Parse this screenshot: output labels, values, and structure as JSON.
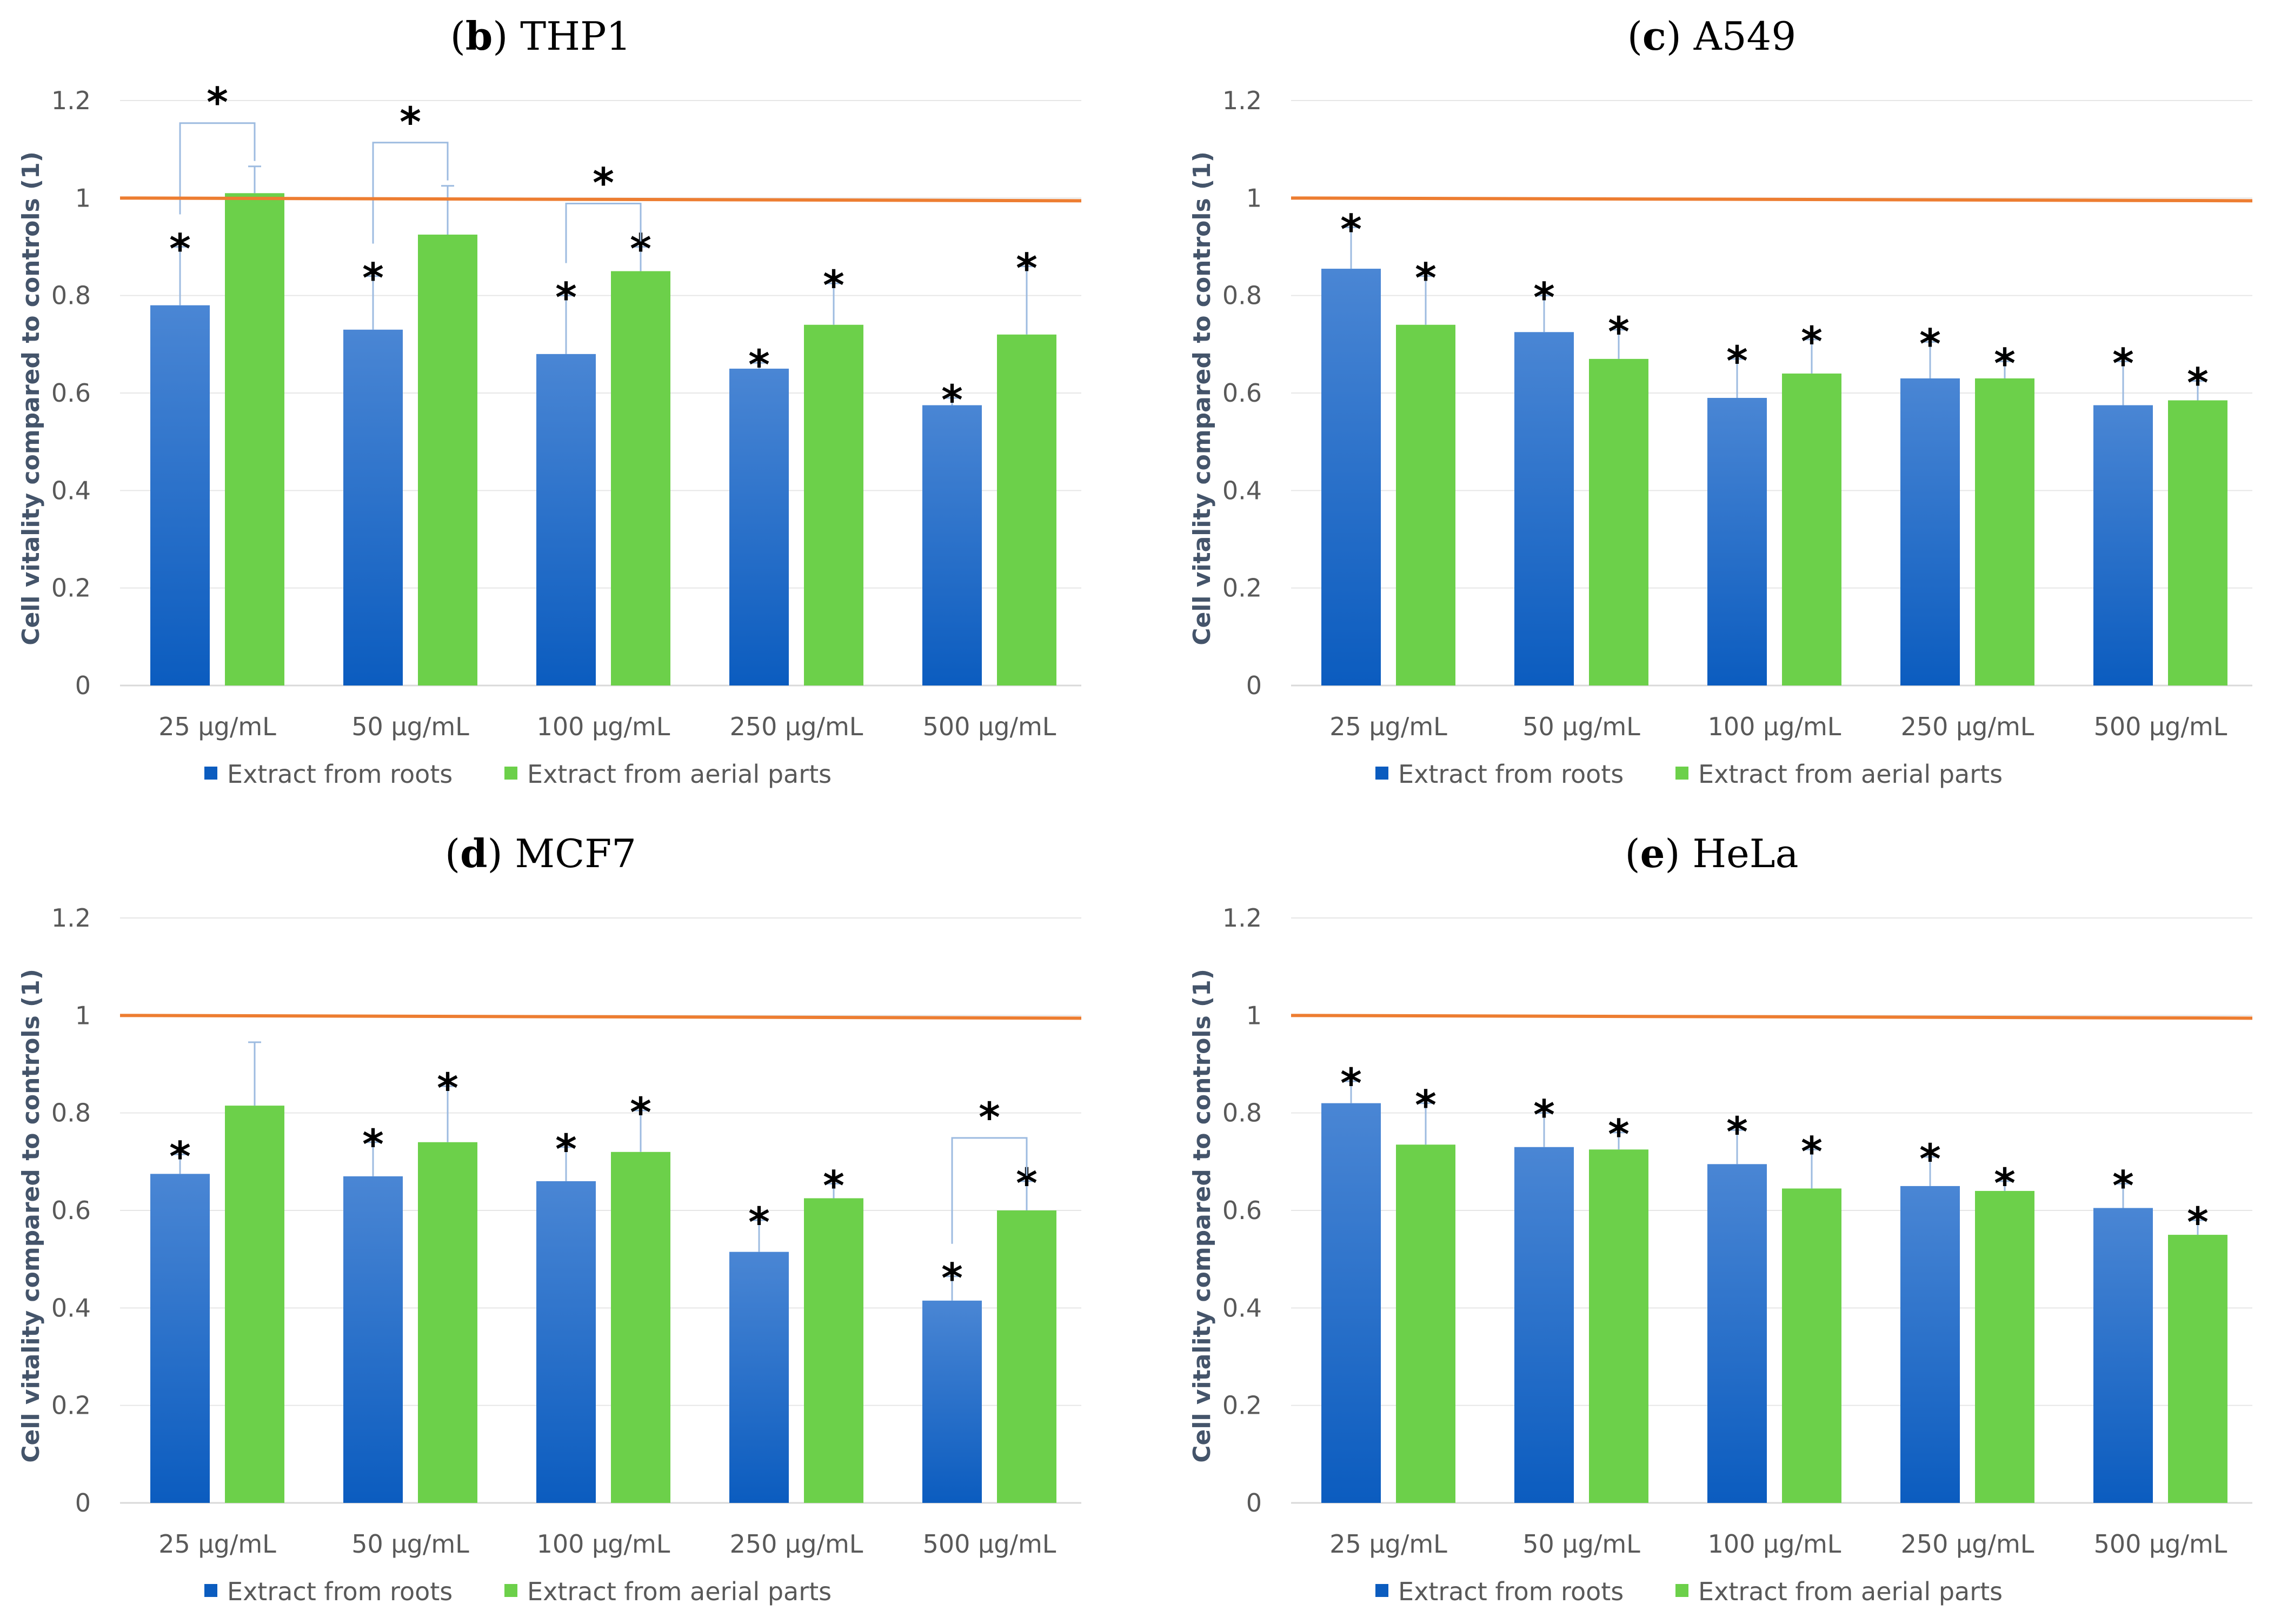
{
  "chart_data": [
    {
      "type": "bar",
      "panel_letter": "b",
      "panel_name": "THP1",
      "ylabel": "Cell vitality compared to controls (1)",
      "ylim": [
        0,
        1.2
      ],
      "yticks": [
        "0",
        "0.2",
        "0.4",
        "0.6",
        "0.8",
        "1",
        "1.2"
      ],
      "reference_line": 1,
      "categories": [
        "25 µg/mL",
        "50 µg/mL",
        "100 µg/mL",
        "250 µg/mL",
        "500 µg/mL"
      ],
      "series": [
        {
          "name": "Extract from roots",
          "values": [
            0.78,
            0.73,
            0.68,
            0.65,
            0.575
          ],
          "errors": [
            0.12,
            0.11,
            0.12,
            0.012,
            0.015
          ],
          "stars": [
            true,
            true,
            true,
            true,
            true
          ]
        },
        {
          "name": "Extract from aerial parts",
          "values": [
            1.01,
            0.925,
            0.85,
            0.74,
            0.72
          ],
          "errors": [
            0.055,
            0.1,
            0.05,
            0.085,
            0.14
          ],
          "stars": [
            false,
            false,
            true,
            true,
            true
          ]
        }
      ],
      "brackets": [
        {
          "category": 0,
          "label": "*"
        },
        {
          "category": 1,
          "label": "*"
        },
        {
          "category": 2,
          "label": "*"
        }
      ],
      "star_label": "*"
    },
    {
      "type": "bar",
      "panel_letter": "c",
      "panel_name": "A549",
      "ylabel": "Cell vitality compared to controls (1)",
      "ylim": [
        0,
        1.2
      ],
      "yticks": [
        "0",
        "0.2",
        "0.4",
        "0.6",
        "0.8",
        "1",
        "1.2"
      ],
      "reference_line": 1,
      "categories": [
        "25 µg/mL",
        "50 µg/mL",
        "100 µg/mL",
        "250 µg/mL",
        "500 µg/mL"
      ],
      "series": [
        {
          "name": "Extract from roots",
          "values": [
            0.855,
            0.725,
            0.59,
            0.63,
            0.575
          ],
          "errors": [
            0.085,
            0.075,
            0.08,
            0.075,
            0.09
          ],
          "stars": [
            true,
            true,
            true,
            true,
            true
          ]
        },
        {
          "name": "Extract from aerial parts",
          "values": [
            0.74,
            0.67,
            0.64,
            0.63,
            0.585
          ],
          "errors": [
            0.1,
            0.06,
            0.07,
            0.035,
            0.04
          ],
          "stars": [
            true,
            true,
            true,
            true,
            true
          ]
        }
      ],
      "brackets": [],
      "star_label": "*"
    },
    {
      "type": "bar",
      "panel_letter": "d",
      "panel_name": "MCF7",
      "ylabel": "Cell vitality compared to controls (1)",
      "ylim": [
        0,
        1.2
      ],
      "yticks": [
        "0",
        "0.2",
        "0.4",
        "0.6",
        "0.8",
        "1",
        "1.2"
      ],
      "reference_line": 1,
      "categories": [
        "25 µg/mL",
        "50 µg/mL",
        "100 µg/mL",
        "250 µg/mL",
        "500 µg/mL"
      ],
      "series": [
        {
          "name": "Extract from roots",
          "values": [
            0.675,
            0.67,
            0.66,
            0.515,
            0.415
          ],
          "errors": [
            0.04,
            0.07,
            0.07,
            0.065,
            0.05
          ],
          "stars": [
            true,
            true,
            true,
            true,
            true
          ]
        },
        {
          "name": "Extract from aerial parts",
          "values": [
            0.815,
            0.74,
            0.72,
            0.625,
            0.6
          ],
          "errors": [
            0.13,
            0.115,
            0.085,
            0.03,
            0.06
          ],
          "stars": [
            false,
            true,
            true,
            true,
            true
          ]
        }
      ],
      "brackets": [
        {
          "category": 4,
          "label": "*"
        }
      ],
      "star_label": "*"
    },
    {
      "type": "bar",
      "panel_letter": "e",
      "panel_name": "HeLa",
      "ylabel": "Cell vitality compared to controls (1)",
      "ylim": [
        0,
        1.2
      ],
      "yticks": [
        "0",
        "0.2",
        "0.4",
        "0.6",
        "0.8",
        "1",
        "1.2"
      ],
      "reference_line": 1,
      "categories": [
        "25 µg/mL",
        "50 µg/mL",
        "100 µg/mL",
        "250 µg/mL",
        "500 µg/mL"
      ],
      "series": [
        {
          "name": "Extract from roots",
          "values": [
            0.82,
            0.73,
            0.695,
            0.65,
            0.605
          ],
          "errors": [
            0.045,
            0.07,
            0.07,
            0.06,
            0.05
          ],
          "stars": [
            true,
            true,
            true,
            true,
            true
          ]
        },
        {
          "name": "Extract from aerial parts",
          "values": [
            0.735,
            0.725,
            0.645,
            0.64,
            0.55
          ],
          "errors": [
            0.085,
            0.035,
            0.08,
            0.02,
            0.03
          ],
          "stars": [
            true,
            true,
            true,
            true,
            true
          ]
        }
      ],
      "brackets": [],
      "star_label": "*"
    }
  ],
  "colors": {
    "roots_top": "#4a86d4",
    "roots_bottom": "#0b5cbf",
    "aerial": "#6cd04a",
    "reference_line": "#ed7d31",
    "gridline": "#e6e6e6",
    "error_bar": "#9dbbe0",
    "bracket": "#9dbbe0"
  }
}
